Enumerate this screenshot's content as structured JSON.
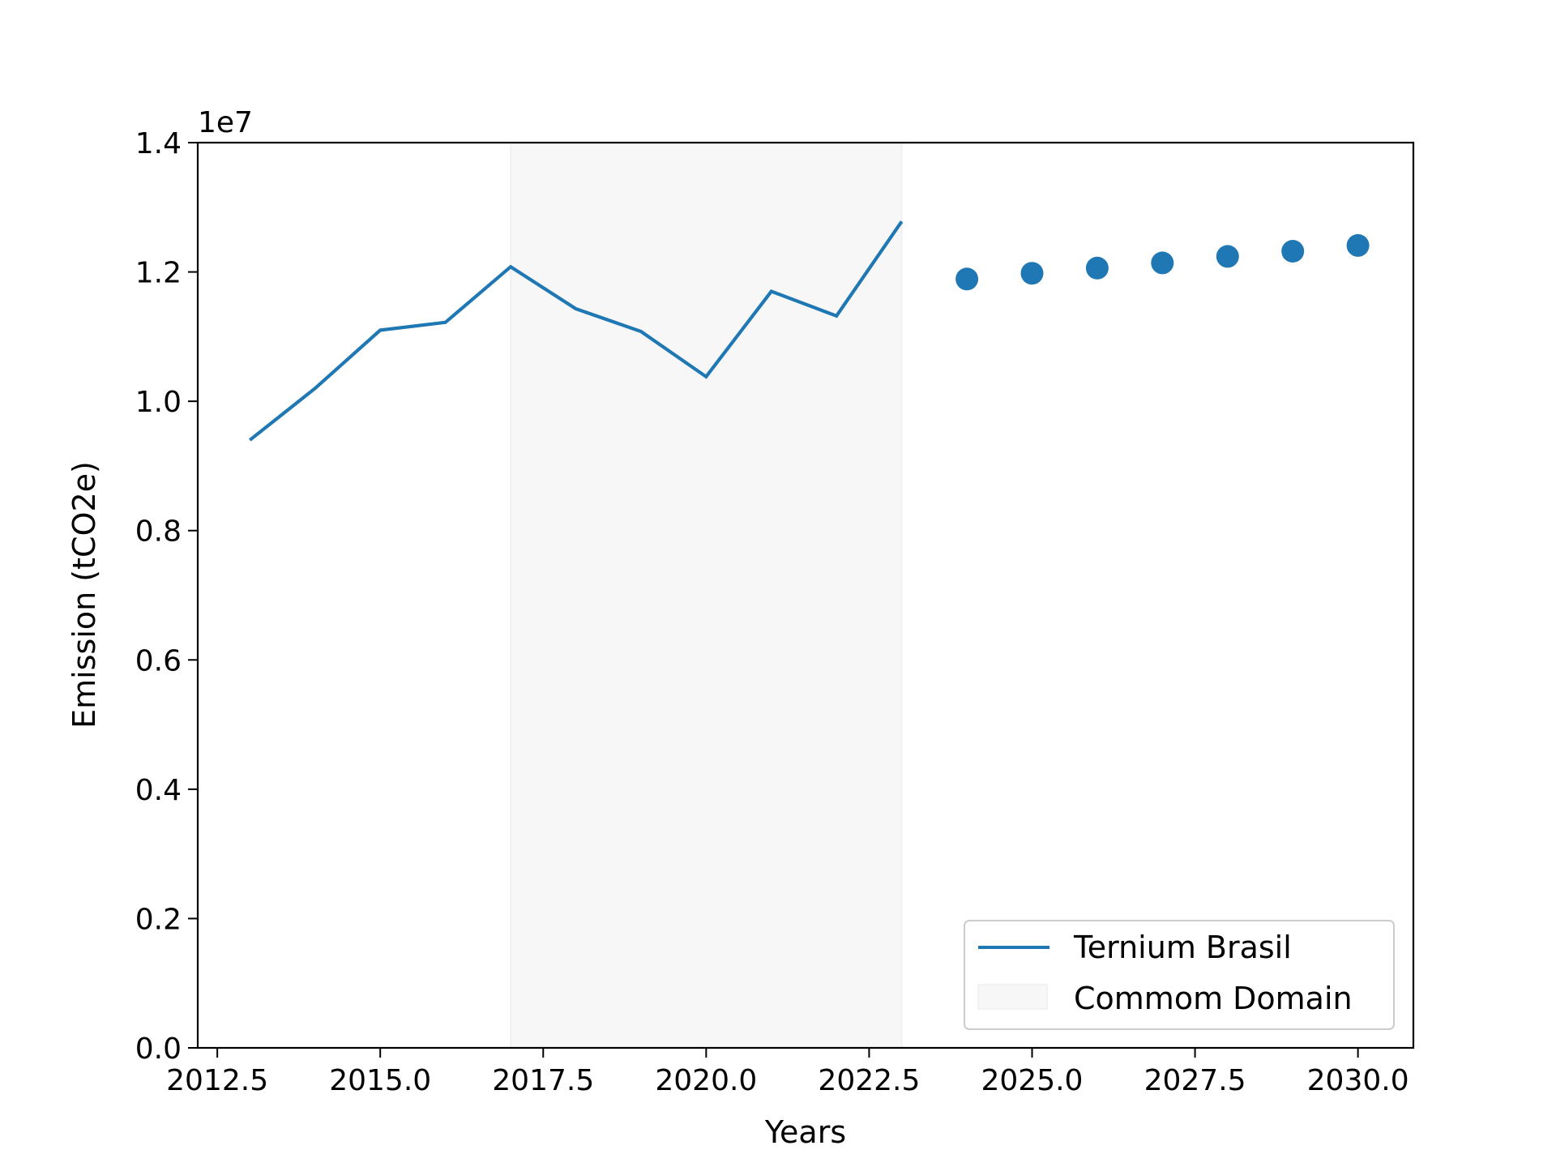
{
  "chart_data": {
    "type": "line",
    "title": "",
    "xlabel": "Years",
    "ylabel": "Emission (tCO2e)",
    "y_offset_label": "1e7",
    "xlim": [
      2012.2,
      2030.85
    ],
    "ylim": [
      0,
      14000000
    ],
    "grid": false,
    "legend_position": "lower right",
    "x_ticks": [
      2012.5,
      2015.0,
      2017.5,
      2020.0,
      2022.5,
      2025.0,
      2027.5,
      2030.0
    ],
    "x_tick_labels": [
      "2012.5",
      "2015.0",
      "2017.5",
      "2020.0",
      "2022.5",
      "2025.0",
      "2027.5",
      "2030.0"
    ],
    "y_ticks": [
      0,
      2000000,
      4000000,
      6000000,
      8000000,
      10000000,
      12000000,
      14000000
    ],
    "y_tick_labels": [
      "0.0",
      "0.2",
      "0.4",
      "0.6",
      "0.8",
      "1.0",
      "1.2",
      "1.4"
    ],
    "shaded_region": {
      "name": "Commom Domain",
      "x_start": 2017,
      "x_end": 2023,
      "color": "#f7f7f7"
    },
    "series": [
      {
        "name": "Ternium Brasil",
        "kind": "line",
        "color": "#1f77b4",
        "x": [
          2013,
          2014,
          2015,
          2016,
          2017,
          2018,
          2019,
          2020,
          2021,
          2022,
          2023
        ],
        "values": [
          9400000,
          10200000,
          11100000,
          11220000,
          12080000,
          11430000,
          11080000,
          10380000,
          11700000,
          11320000,
          12780000
        ]
      },
      {
        "kind": "scatter",
        "color": "#1f77b4",
        "x": [
          2024,
          2025,
          2026,
          2027,
          2028,
          2029,
          2030
        ],
        "values": [
          11890000,
          11980000,
          12060000,
          12140000,
          12240000,
          12320000,
          12410000
        ]
      }
    ]
  }
}
